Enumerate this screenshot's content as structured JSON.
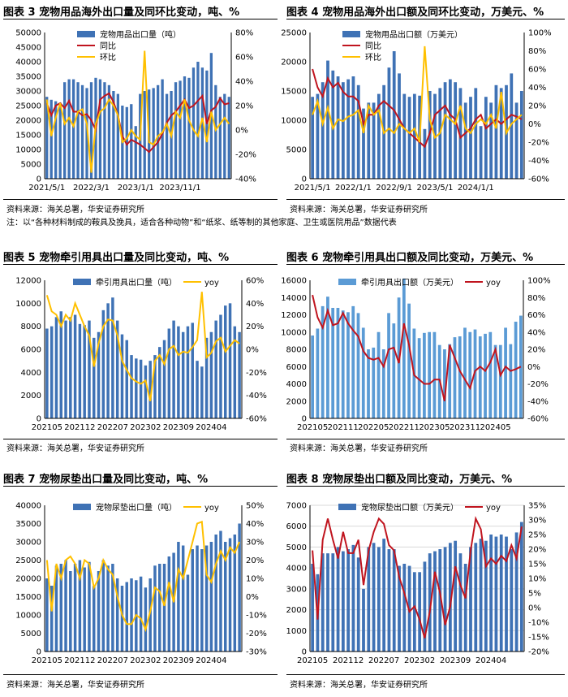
{
  "colors": {
    "bar": "#3f72b5",
    "bar_light": "#5b9bd5",
    "yoy": "#c0141e",
    "mom": "#ffc000",
    "grid": "#d9d9d9"
  },
  "note": "注：以“各种材料制成的鞍具及挽具，适合各种动物”和“纸浆、纸等制的其他家庭、卫生或医院用品”数据代表",
  "chart_data": [
    {
      "type": "bar",
      "title": "图表 3 宠物用品海外出口量及同环比变动，吨、%",
      "source": "资料来源：海关总署，华安证券研究所",
      "ylim": [
        0,
        50000
      ],
      "y_ticks": [
        "0",
        "5000",
        "10000",
        "15000",
        "20000",
        "25000",
        "30000",
        "35000",
        "40000",
        "45000",
        "50000"
      ],
      "y2lim": [
        -40,
        80
      ],
      "y2_ticks": [
        "-40%",
        "-20%",
        "0%",
        "20%",
        "40%",
        "60%",
        "80%"
      ],
      "x_labels": [
        "2021/5/1",
        "2022/3/1",
        "2023/1/1",
        "2023/11/1"
      ],
      "x_label_idx": [
        0,
        10,
        20,
        30
      ],
      "legend": [
        "宠物用品出口量（吨）",
        "同比",
        "环比"
      ],
      "bars": [
        28000,
        27000,
        26500,
        26000,
        33000,
        34000,
        34000,
        33000,
        32000,
        31000,
        33000,
        34500,
        34000,
        33000,
        32000,
        30000,
        29000,
        25000,
        24500,
        25500,
        18000,
        29000,
        30000,
        30500,
        31000,
        32000,
        34000,
        29000,
        30000,
        33000,
        33500,
        35000,
        34500,
        38000,
        40000,
        38000,
        37000,
        43000,
        32000,
        28000,
        29000,
        28000
      ],
      "yoy": [
        22,
        12,
        20,
        22,
        18,
        24,
        15,
        15,
        12,
        13,
        8,
        0,
        25,
        28,
        30,
        23,
        12,
        -5,
        -12,
        -8,
        -10,
        -12,
        -15,
        -18,
        -14,
        -10,
        -3,
        6,
        12,
        15,
        20,
        25,
        18,
        20,
        24,
        28,
        5,
        16,
        19,
        26,
        21,
        22
      ],
      "mom": [
        25,
        -5,
        10,
        22,
        5,
        10,
        3,
        15,
        17,
        5,
        -35,
        5,
        15,
        18,
        25,
        20,
        12,
        -10,
        -7,
        0,
        -5,
        -8,
        65,
        -10,
        -12,
        -5,
        -2,
        5,
        -5,
        15,
        10,
        25,
        8,
        0,
        -5,
        10,
        -10,
        15,
        0,
        5,
        10,
        5
      ]
    },
    {
      "type": "bar",
      "title": "图表 4 宠物用品海外出口额及同环比变动，万美元、%",
      "source": "资料来源：海关总署，华安证券研究所",
      "ylim": [
        0,
        25000
      ],
      "y_ticks": [
        "0",
        "5000",
        "10000",
        "15000",
        "20000",
        "25000"
      ],
      "y2lim": [
        -60,
        100
      ],
      "y2_ticks": [
        "-60%",
        "-40%",
        "-20%",
        "0%",
        "20%",
        "40%",
        "60%",
        "80%",
        "100%"
      ],
      "x_labels": [
        "2021/5/1",
        "2022/1/1",
        "2022/9/1",
        "2023/5/1",
        "2024/1/1"
      ],
      "x_label_idx": [
        0,
        8,
        16,
        24,
        32
      ],
      "legend": [
        "宠物用品出口额（万美元）",
        "同比",
        "环比"
      ],
      "bars": [
        14000,
        14500,
        16500,
        20200,
        18500,
        17500,
        16500,
        17000,
        17500,
        16000,
        12000,
        13000,
        13000,
        14500,
        16000,
        19000,
        21800,
        18000,
        14500,
        14000,
        14500,
        14200,
        8500,
        15000,
        14500,
        15500,
        16500,
        17000,
        16500,
        15500,
        13000,
        14000,
        15500,
        9000,
        14000,
        13000,
        16000,
        15500,
        16000,
        18000,
        13000,
        15000
      ],
      "yoy": [
        60,
        40,
        30,
        50,
        40,
        45,
        35,
        30,
        30,
        25,
        0,
        10,
        10,
        20,
        25,
        20,
        15,
        5,
        -5,
        -10,
        -15,
        -20,
        -25,
        -10,
        10,
        15,
        20,
        10,
        5,
        -15,
        -10,
        -5,
        5,
        10,
        -5,
        0,
        5,
        0,
        5,
        10,
        8,
        5
      ],
      "mom": [
        10,
        25,
        0,
        18,
        -5,
        5,
        3,
        8,
        10,
        15,
        -10,
        20,
        10,
        15,
        -10,
        -5,
        -10,
        0,
        -5,
        -10,
        -5,
        -20,
        85,
        5,
        -15,
        -10,
        10,
        5,
        0,
        20,
        -5,
        -10,
        0,
        5,
        0,
        10,
        -5,
        35,
        -10,
        0,
        5,
        10
      ]
    },
    {
      "type": "bar",
      "title": "图表 5 宠物牵引用具出口量及同比变动，吨、%",
      "source": "资料来源：海关总署，华安证券研究所",
      "ylim": [
        0,
        12000
      ],
      "y_ticks": [
        "0",
        "2000",
        "4000",
        "6000",
        "8000",
        "10000",
        "12000"
      ],
      "y2lim": [
        -60,
        60
      ],
      "y2_ticks": [
        "-60%",
        "-40%",
        "-20%",
        "0%",
        "20%",
        "40%",
        "60%"
      ],
      "x_labels": [
        "202105",
        "202112",
        "202207",
        "202302",
        "202309",
        "202404"
      ],
      "x_label_idx": [
        0,
        7,
        14,
        21,
        28,
        35
      ],
      "legend": [
        "牵引用具出口量（吨）",
        "yoy"
      ],
      "bars": [
        7800,
        8000,
        8800,
        9300,
        8500,
        8800,
        9000,
        8200,
        8100,
        8500,
        7000,
        7500,
        9400,
        10000,
        10500,
        8500,
        7300,
        6800,
        5500,
        5200,
        5100,
        4600,
        5000,
        5500,
        6200,
        6800,
        7800,
        8500,
        8000,
        7500,
        8000,
        8300,
        5000,
        4500,
        7000,
        7500,
        8500,
        9000,
        9800,
        10000,
        8000,
        7500
      ],
      "yoy": [
        47,
        33,
        30,
        20,
        30,
        25,
        40,
        30,
        20,
        12,
        -15,
        5,
        20,
        26,
        25,
        12,
        -10,
        -18,
        -25,
        -28,
        -30,
        -27,
        -45,
        -10,
        -5,
        -13,
        0,
        3,
        -5,
        -2,
        -3,
        2,
        8,
        50,
        -7,
        -3,
        7,
        10,
        -2,
        3,
        8,
        5
      ]
    },
    {
      "type": "bar",
      "title": "图表 6 宠物牵引用具出口额及同比变动，万美元、%",
      "source": "资料来源：海关总署，华安证券研究所",
      "ylim": [
        0,
        16000
      ],
      "y_ticks": [
        "0",
        "2000",
        "4000",
        "6000",
        "8000",
        "10000",
        "12000",
        "14000",
        "16000"
      ],
      "y2lim": [
        -60,
        100
      ],
      "y2_ticks": [
        "-60%",
        "-40%",
        "-20%",
        "0%",
        "20%",
        "40%",
        "60%",
        "80%",
        "100%"
      ],
      "x_labels": [
        "202105",
        "202111",
        "202205",
        "202211",
        "202305",
        "202311",
        "202405"
      ],
      "x_label_idx": [
        0,
        6,
        12,
        18,
        24,
        30,
        36
      ],
      "legend": [
        "牵引用具出口额（万美元）",
        "yoy"
      ],
      "bars": [
        9600,
        10400,
        13000,
        14100,
        12800,
        12800,
        12500,
        12300,
        13000,
        12200,
        10500,
        8000,
        8200,
        10000,
        8000,
        12200,
        11000,
        14000,
        16200,
        13300,
        10400,
        9300,
        9900,
        10000,
        10000,
        8500,
        8000,
        8600,
        9400,
        9500,
        10500,
        10000,
        10300,
        9500,
        9800,
        10000,
        8500,
        8500,
        10500,
        8600,
        11200,
        11900
      ],
      "yoy": [
        83,
        57,
        45,
        65,
        48,
        50,
        62,
        50,
        42,
        35,
        18,
        10,
        8,
        10,
        0,
        20,
        22,
        4,
        50,
        25,
        -10,
        -15,
        -20,
        -20,
        -15,
        -15,
        -40,
        25,
        10,
        -5,
        -15,
        -25,
        -5,
        0,
        -5,
        5,
        20,
        -10,
        0,
        -5,
        -3,
        0
      ]
    },
    {
      "type": "bar",
      "title": "图表 7 宠物尿垫出口量及同比变动，吨、%",
      "source": "资料来源：海关总署，华安证券研究所",
      "ylim": [
        0,
        40000
      ],
      "y_ticks": [
        "0",
        "5000",
        "10000",
        "15000",
        "20000",
        "25000",
        "30000",
        "35000",
        "40000"
      ],
      "y2lim": [
        -30,
        50
      ],
      "y2_ticks": [
        "-30%",
        "-20%",
        "-10%",
        "0%",
        "10%",
        "20%",
        "30%",
        "40%",
        "50%"
      ],
      "x_labels": [
        "202105",
        "202112",
        "202207",
        "202302",
        "202309",
        "202404"
      ],
      "x_label_idx": [
        0,
        7,
        14,
        21,
        28,
        35
      ],
      "legend": [
        "宠物尿垫出口量（吨）",
        "yoy"
      ],
      "bars": [
        20000,
        18000,
        23500,
        24000,
        25000,
        22000,
        24000,
        25000,
        23000,
        24500,
        18000,
        22000,
        25000,
        23500,
        24000,
        20000,
        18000,
        19000,
        20000,
        19500,
        20500,
        17500,
        20000,
        23500,
        24000,
        24000,
        26000,
        27000,
        30000,
        29000,
        21000,
        28000,
        29000,
        28000,
        29000,
        30000,
        32000,
        33000,
        30000,
        31000,
        32000,
        35000
      ],
      "yoy": [
        20,
        -8,
        18,
        10,
        20,
        22,
        18,
        10,
        20,
        18,
        5,
        10,
        20,
        15,
        12,
        0,
        -10,
        -15,
        -15,
        -10,
        -12,
        -18,
        -8,
        5,
        3,
        -5,
        8,
        -3,
        15,
        10,
        20,
        30,
        40,
        41,
        12,
        8,
        18,
        25,
        20,
        27,
        24,
        30
      ]
    },
    {
      "type": "bar",
      "title": "图表 8 宠物尿垫出口额及同比变动，万美元、%",
      "source": "资料来源：海关总署，华安证券研究所",
      "ylim": [
        0,
        7000
      ],
      "y_ticks": [
        "0",
        "1000",
        "2000",
        "3000",
        "4000",
        "5000",
        "6000",
        "7000"
      ],
      "y2lim": [
        -20,
        35
      ],
      "y2_ticks": [
        "-20%",
        "-15%",
        "-10%",
        "0%",
        "5%",
        "10%",
        "15%",
        "20%",
        "25%",
        "30%",
        "35%"
      ],
      "x_labels": [
        "202105",
        "202112",
        "202207",
        "202302",
        "202309",
        "202404"
      ],
      "x_label_idx": [
        0,
        7,
        14,
        21,
        28,
        35
      ],
      "legend": [
        "宠物尿垫出口额（万美元）",
        "yoy"
      ],
      "bars": [
        4200,
        3700,
        4700,
        4700,
        4700,
        5000,
        4800,
        4900,
        5100,
        4500,
        3000,
        5000,
        5200,
        5000,
        5400,
        4900,
        4900,
        4100,
        4200,
        4100,
        3800,
        3800,
        4300,
        4700,
        4800,
        4900,
        5000,
        5200,
        5300,
        4700,
        4200,
        5000,
        5200,
        5400,
        5300,
        5600,
        5500,
        5600,
        5500,
        4900,
        5700,
        6200
      ],
      "yoy": [
        18,
        -8,
        22,
        30,
        22,
        15,
        25,
        17,
        17,
        22,
        5,
        18,
        25,
        30,
        28,
        20,
        18,
        8,
        2,
        -5,
        -3,
        -8,
        -15,
        -5,
        10,
        2,
        -10,
        -3,
        12,
        5,
        0,
        18,
        30,
        26,
        12,
        15,
        13,
        16,
        14,
        20,
        15,
        27
      ]
    }
  ]
}
